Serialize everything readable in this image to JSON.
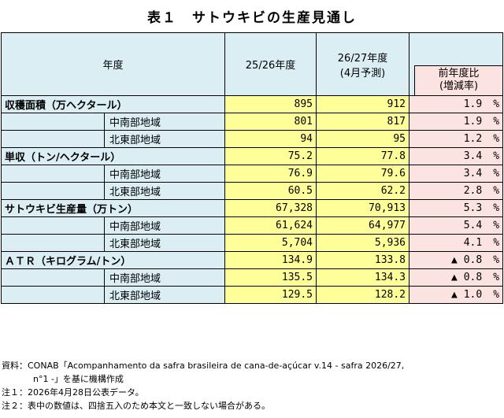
{
  "title": "表１　サトウキビの生産見通し",
  "header": {
    "year": "年度",
    "col1": "25/26年度",
    "col2_line1": "26/27年度",
    "col2_line2": "(4月予測)",
    "col3_line1": "前年度比",
    "col3_line2": "(増減率)"
  },
  "rows": [
    {
      "label": "収穫面積（万ヘクタール）",
      "v1": "895",
      "v2": "912",
      "yoy": "1.9",
      "unit": "%"
    },
    {
      "sub": "中南部地域",
      "v1": "801",
      "v2": "817",
      "yoy": "1.9",
      "unit": "%"
    },
    {
      "sub": "北東部地域",
      "v1": "94",
      "v2": "95",
      "yoy": "1.2",
      "unit": "%"
    },
    {
      "label": "単収（トン/ヘクタール）",
      "v1": "75.2",
      "v2": "77.8",
      "yoy": "3.4",
      "unit": "%"
    },
    {
      "sub": "中南部地域",
      "v1": "76.9",
      "v2": "79.6",
      "yoy": "3.4",
      "unit": "%"
    },
    {
      "sub": "北東部地域",
      "v1": "60.5",
      "v2": "62.2",
      "yoy": "2.8",
      "unit": "%"
    },
    {
      "label": "サトウキビ生産量（万トン）",
      "v1": "67,328",
      "v2": "70,913",
      "yoy": "5.3",
      "unit": "%"
    },
    {
      "sub": "中南部地域",
      "v1": "61,624",
      "v2": "64,977",
      "yoy": "5.4",
      "unit": "%"
    },
    {
      "sub": "北東部地域",
      "v1": "5,704",
      "v2": "5,936",
      "yoy": "4.1",
      "unit": "%"
    },
    {
      "label": "ＡＴＲ（キログラム/トン）",
      "v1": "134.9",
      "v2": "133.8",
      "yoy": "▲ 0.8",
      "unit": "%"
    },
    {
      "sub": "中南部地域",
      "v1": "135.5",
      "v2": "134.3",
      "yoy": "▲ 0.8",
      "unit": "%"
    },
    {
      "sub": "北東部地域",
      "v1": "129.5",
      "v2": "128.2",
      "yoy": "▲ 1.0",
      "unit": "%"
    }
  ],
  "notes": {
    "source_line1": "資料：CONAB「Acompanhamento da safra brasileira de cana-de-açúcar v.14 - safra 2026/27,",
    "source_line2": "n°1 -」を基に機構作成",
    "note1": "注１：2026年4月28日公表データ。",
    "note2": "注２：表中の数値は、四捨五入のため本文と一致しない場合がある。"
  }
}
